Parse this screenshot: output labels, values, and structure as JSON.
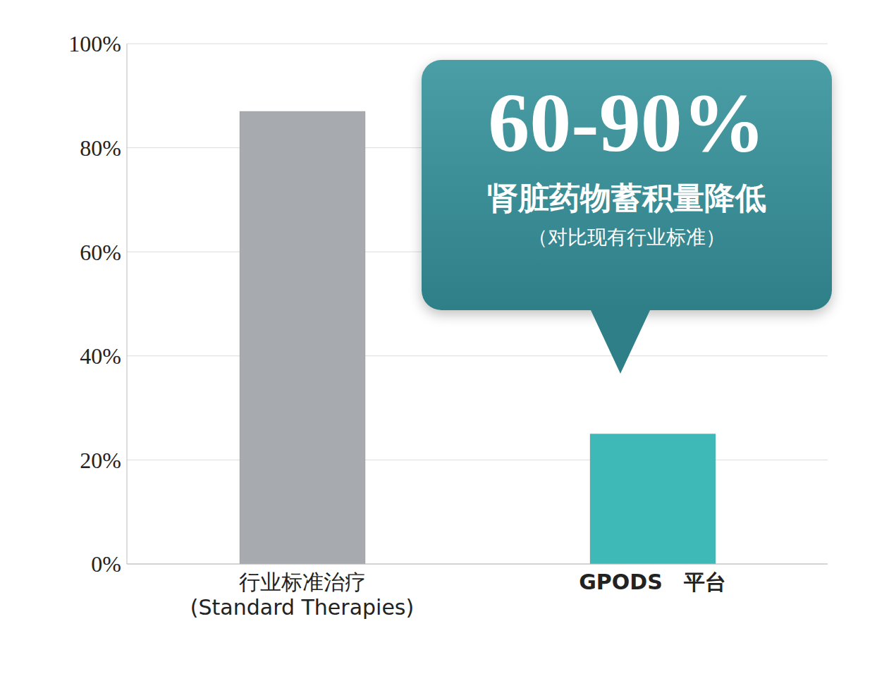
{
  "chart_data": {
    "type": "bar",
    "categories": [
      "行业标准治疗\n(Standard Therapies)",
      "GPODS　平台"
    ],
    "values": [
      87,
      25
    ],
    "colors": [
      "#a7aaae",
      "#3fb9b8"
    ],
    "ylim": [
      0,
      100
    ],
    "yticks": [
      {
        "value": 0,
        "label": "0%"
      },
      {
        "value": 20,
        "label": "20%"
      },
      {
        "value": 40,
        "label": "40%"
      },
      {
        "value": 60,
        "label": "60%"
      },
      {
        "value": 80,
        "label": "80%"
      },
      {
        "value": 100,
        "label": "100%"
      }
    ],
    "grid": true,
    "annotations": [
      "60-90%",
      "肾脏药物蓄积量降低",
      "（对比现有行业标准）"
    ]
  }
}
